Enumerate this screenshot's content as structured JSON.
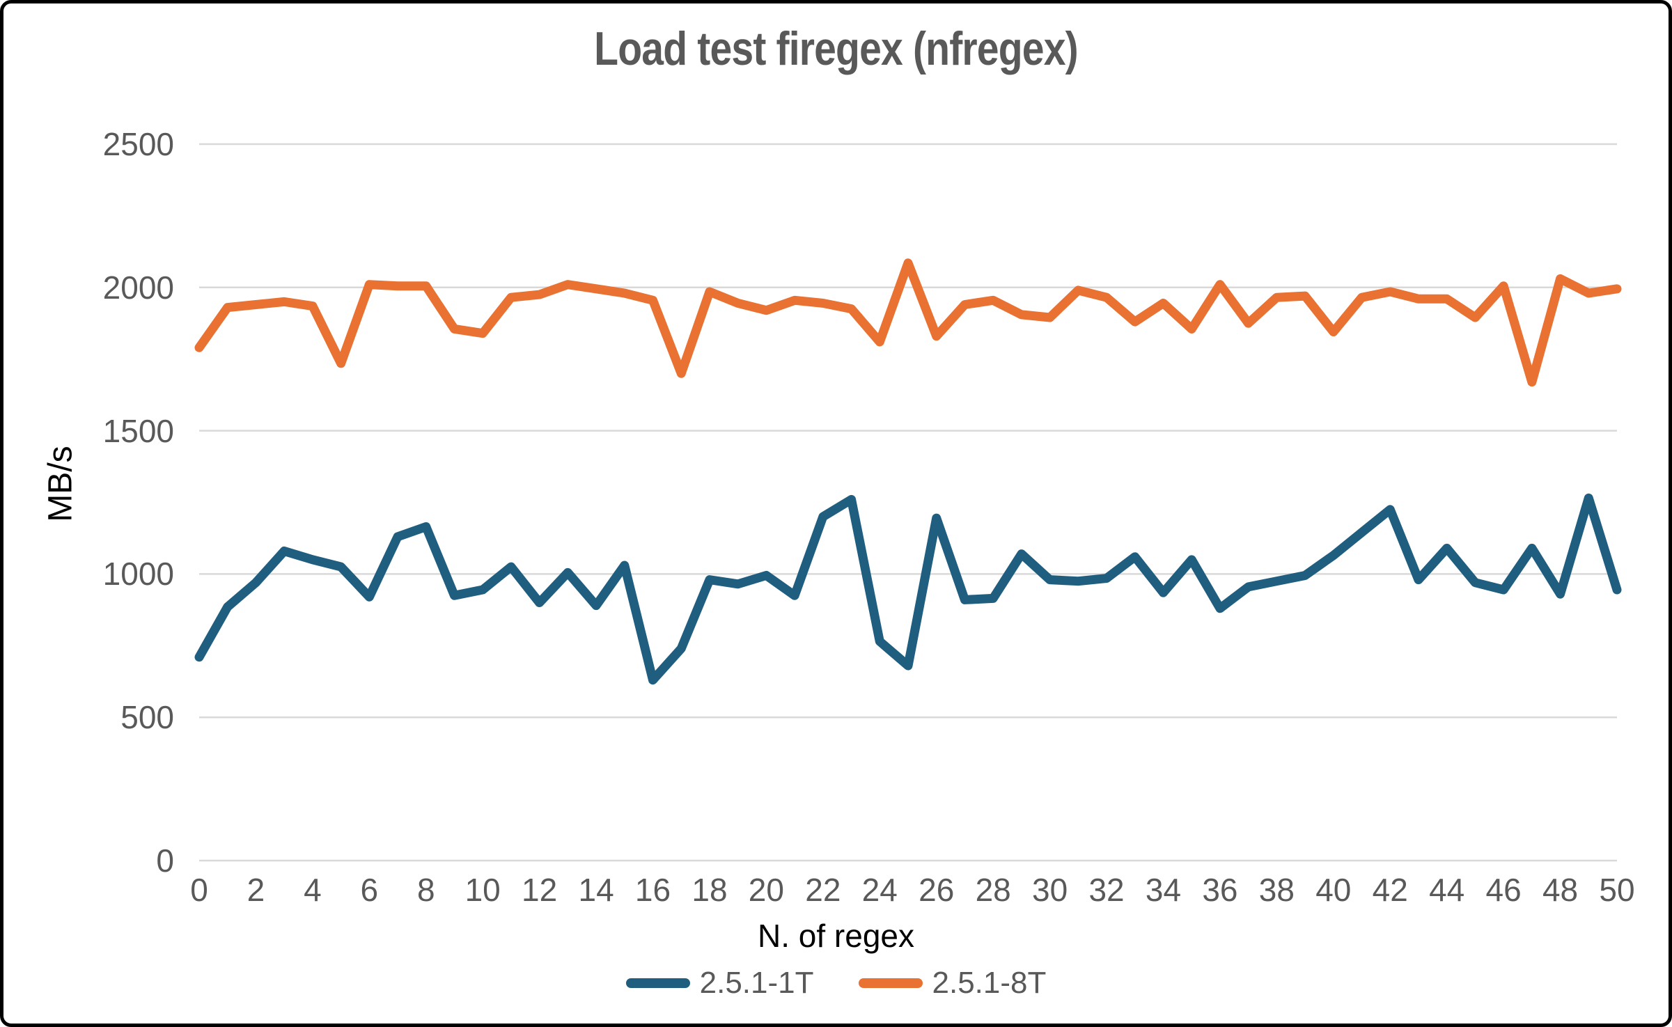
{
  "title": "Load test firegex (nfregex)",
  "colors": {
    "series1_blue": "#205e80",
    "series2_orange": "#e97132",
    "gridline": "#d9d9d9",
    "tick_text": "#595959",
    "axis_title_text": "#000000",
    "title_text": "#595959",
    "frame_border": "#000000",
    "background": "#ffffff"
  },
  "chart_data": {
    "type": "line",
    "title": "Load test firegex (nfregex)",
    "xlabel": "N. of regex",
    "ylabel": "MB/s",
    "x": [
      0,
      1,
      2,
      3,
      4,
      5,
      6,
      7,
      8,
      9,
      10,
      11,
      12,
      13,
      14,
      15,
      16,
      17,
      18,
      19,
      20,
      21,
      22,
      23,
      24,
      25,
      26,
      27,
      28,
      29,
      30,
      31,
      32,
      33,
      34,
      35,
      36,
      37,
      38,
      39,
      40,
      41,
      42,
      43,
      44,
      45,
      46,
      47,
      48,
      49,
      50
    ],
    "x_tick_step": 2,
    "ylim": [
      0,
      2500
    ],
    "y_ticks": [
      0,
      500,
      1000,
      1500,
      2000,
      2500
    ],
    "grid": true,
    "legend_position": "bottom",
    "series": [
      {
        "name": "2.5.1-1T",
        "color": "#205e80",
        "values": [
          710,
          885,
          970,
          1080,
          1050,
          1025,
          920,
          1130,
          1165,
          925,
          945,
          1025,
          900,
          1005,
          890,
          1030,
          630,
          740,
          980,
          965,
          995,
          925,
          1200,
          1260,
          765,
          680,
          1195,
          910,
          915,
          1070,
          980,
          975,
          985,
          1060,
          935,
          1050,
          880,
          955,
          975,
          995,
          1065,
          1145,
          1225,
          980,
          1090,
          970,
          945,
          1090,
          930,
          1265,
          945
        ]
      },
      {
        "name": "2.5.1-8T",
        "color": "#e97132",
        "values": [
          1790,
          1930,
          1940,
          1950,
          1935,
          1735,
          2010,
          2005,
          2005,
          1855,
          1840,
          1965,
          1975,
          2010,
          1995,
          1980,
          1955,
          1700,
          1985,
          1945,
          1920,
          1955,
          1945,
          1925,
          1810,
          2085,
          1830,
          1940,
          1955,
          1905,
          1895,
          1990,
          1965,
          1880,
          1945,
          1855,
          2010,
          1875,
          1965,
          1970,
          1845,
          1965,
          1985,
          1960,
          1960,
          1895,
          2005,
          1670,
          2030,
          1980,
          1995
        ]
      }
    ]
  }
}
